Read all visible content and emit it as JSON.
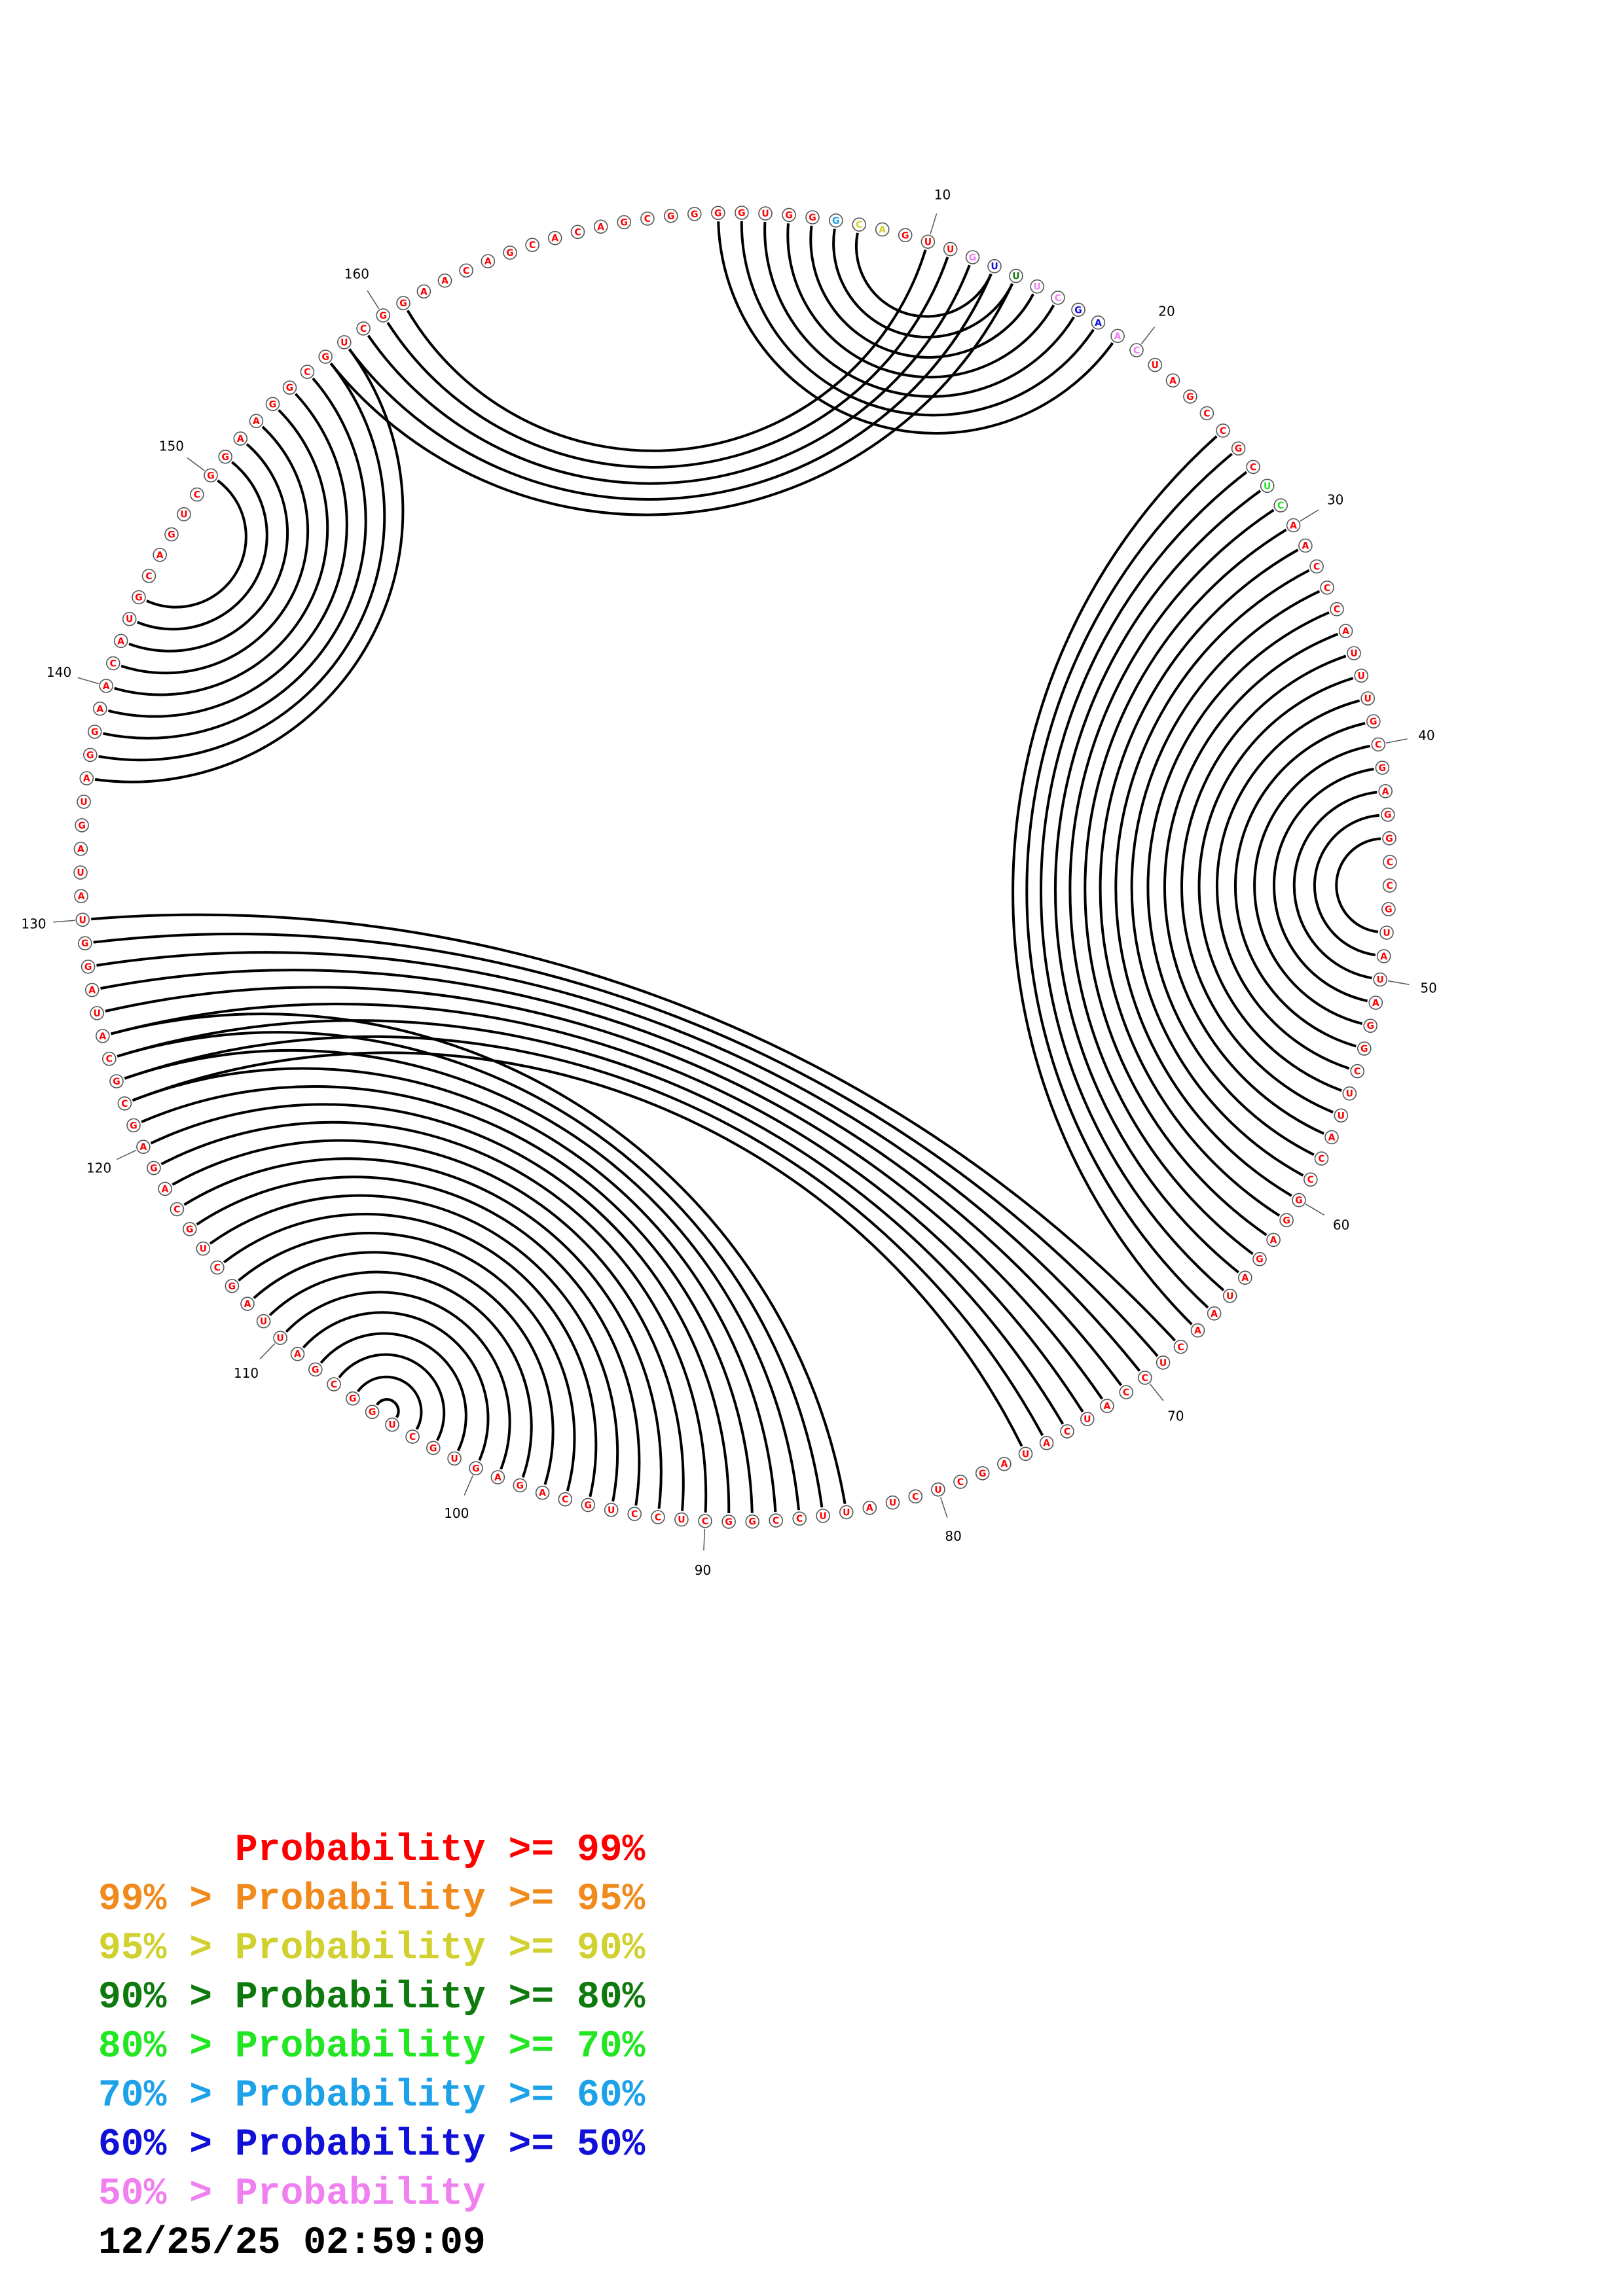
{
  "diagram": {
    "sequence": "GGUGGGCAGUUGUUUCGAACUAGCCGCUCAACCCAUUUGCGAGGCCGUAUAGGCUUACCGGAGAUAACUCCAUCAUAGCUCUAUUCCGGCUCCUGCAGAGUGCUGGCGAUUAGCUGCAGAGCGCAUAGGUAUAGUAGGAACAUGCAGUCGGAAGGCGUCGGAACAGCACAGCGG",
    "color_codes": "00000522000763776677000000044000000000000000000000000000000000000000000000000000000000000000000000000000000000000000000000000000000000000000000000000000000000000000000000",
    "numbered_positions": [
      10,
      20,
      30,
      40,
      50,
      60,
      70,
      80,
      90,
      100,
      110,
      120,
      130,
      140,
      150,
      160
    ],
    "helices": [
      {
        "i": 1,
        "j": 19,
        "length": 7
      },
      {
        "i": 10,
        "j": 161,
        "length": 5
      },
      {
        "i": 25,
        "j": 67,
        "length": 20
      },
      {
        "i": 68,
        "j": 130,
        "length": 9
      },
      {
        "i": 84,
        "j": 125,
        "length": 22
      },
      {
        "i": 136,
        "j": 158,
        "length": 9
      }
    ]
  },
  "legend": {
    "rows": [
      {
        "lower": "",
        "label": "Probability",
        "upper": ">= 99%",
        "color": "#ff0000"
      },
      {
        "lower": "99% >",
        "label": "Probability",
        "upper": ">= 95%",
        "color": "#f08a1c"
      },
      {
        "lower": "95% >",
        "label": "Probability",
        "upper": ">= 90%",
        "color": "#d0d02e"
      },
      {
        "lower": "90% >",
        "label": "Probability",
        "upper": ">= 80%",
        "color": "#0e7a0e"
      },
      {
        "lower": "80% >",
        "label": "Probability",
        "upper": ">= 70%",
        "color": "#22e622"
      },
      {
        "lower": "70% >",
        "label": "Probability",
        "upper": ">= 60%",
        "color": "#1da1e8"
      },
      {
        "lower": "60% >",
        "label": "Probability",
        "upper": ">= 50%",
        "color": "#1010d8"
      },
      {
        "lower": "50% >",
        "label": "Probability",
        "upper": "",
        "color": "#f080f0"
      }
    ]
  },
  "timestamp": "12/25/25 02:59:09"
}
